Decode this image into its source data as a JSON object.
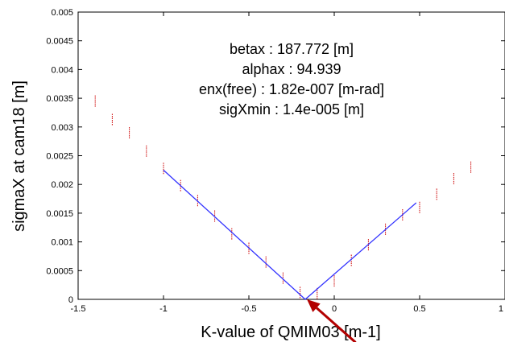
{
  "chart_data": {
    "type": "scatter",
    "xlabel": "K-value of QMIM03 [m-1]",
    "ylabel": "sigmaX at cam18 [m]",
    "xlim": [
      -1.5,
      1.0
    ],
    "ylim": [
      0,
      0.005
    ],
    "x_ticks": [
      "-1.5",
      "-1",
      "-0.5",
      "0",
      "0.5",
      "1"
    ],
    "y_ticks": [
      "0",
      "0.0005",
      "0.001",
      "0.0015",
      "0.002",
      "0.0025",
      "0.003",
      "0.0035",
      "0.004",
      "0.0045",
      "0.005"
    ],
    "grid": false,
    "annotations": [
      "betax : 187.772 [m]",
      "alphax : 94.939",
      "enx(free) : 1.82e-007 [m-rad]",
      "sigXmin : 1.4e-005 [m]"
    ],
    "series": [
      {
        "color": "#cc0000",
        "marker": "vertical-dash",
        "points": [
          {
            "x": -1.4,
            "y": 0.00345
          },
          {
            "x": -1.3,
            "y": 0.00313
          },
          {
            "x": -1.2,
            "y": 0.0029
          },
          {
            "x": -1.1,
            "y": 0.00258
          },
          {
            "x": -1.0,
            "y": 0.00228
          },
          {
            "x": -0.9,
            "y": 0.00198
          },
          {
            "x": -0.8,
            "y": 0.00172
          },
          {
            "x": -0.7,
            "y": 0.00145
          },
          {
            "x": -0.6,
            "y": 0.00114
          },
          {
            "x": -0.5,
            "y": 0.00089
          },
          {
            "x": -0.4,
            "y": 0.00065
          },
          {
            "x": -0.3,
            "y": 0.00037
          },
          {
            "x": -0.2,
            "y": 0.00012
          },
          {
            "x": -0.1,
            "y": 0.0001
          },
          {
            "x": 0.0,
            "y": 0.00032
          },
          {
            "x": 0.1,
            "y": 0.00068
          },
          {
            "x": 0.2,
            "y": 0.00095
          },
          {
            "x": 0.3,
            "y": 0.00122
          },
          {
            "x": 0.4,
            "y": 0.00147
          },
          {
            "x": 0.5,
            "y": 0.0016
          },
          {
            "x": 0.6,
            "y": 0.00183
          },
          {
            "x": 0.7,
            "y": 0.0021
          },
          {
            "x": 0.8,
            "y": 0.0023
          }
        ]
      },
      {
        "color": "#3333ff",
        "marker": "line",
        "points": [
          {
            "x": -1.0,
            "y": 0.00225
          },
          {
            "x": -0.17,
            "y": 0.0
          },
          {
            "x": 0.48,
            "y": 0.00168
          }
        ]
      }
    ],
    "arrow": {
      "color": "#b30000",
      "from": {
        "x": 0.125,
        "y": -0.00075
      },
      "to": {
        "x": -0.16,
        "y": 0.0
      }
    }
  }
}
